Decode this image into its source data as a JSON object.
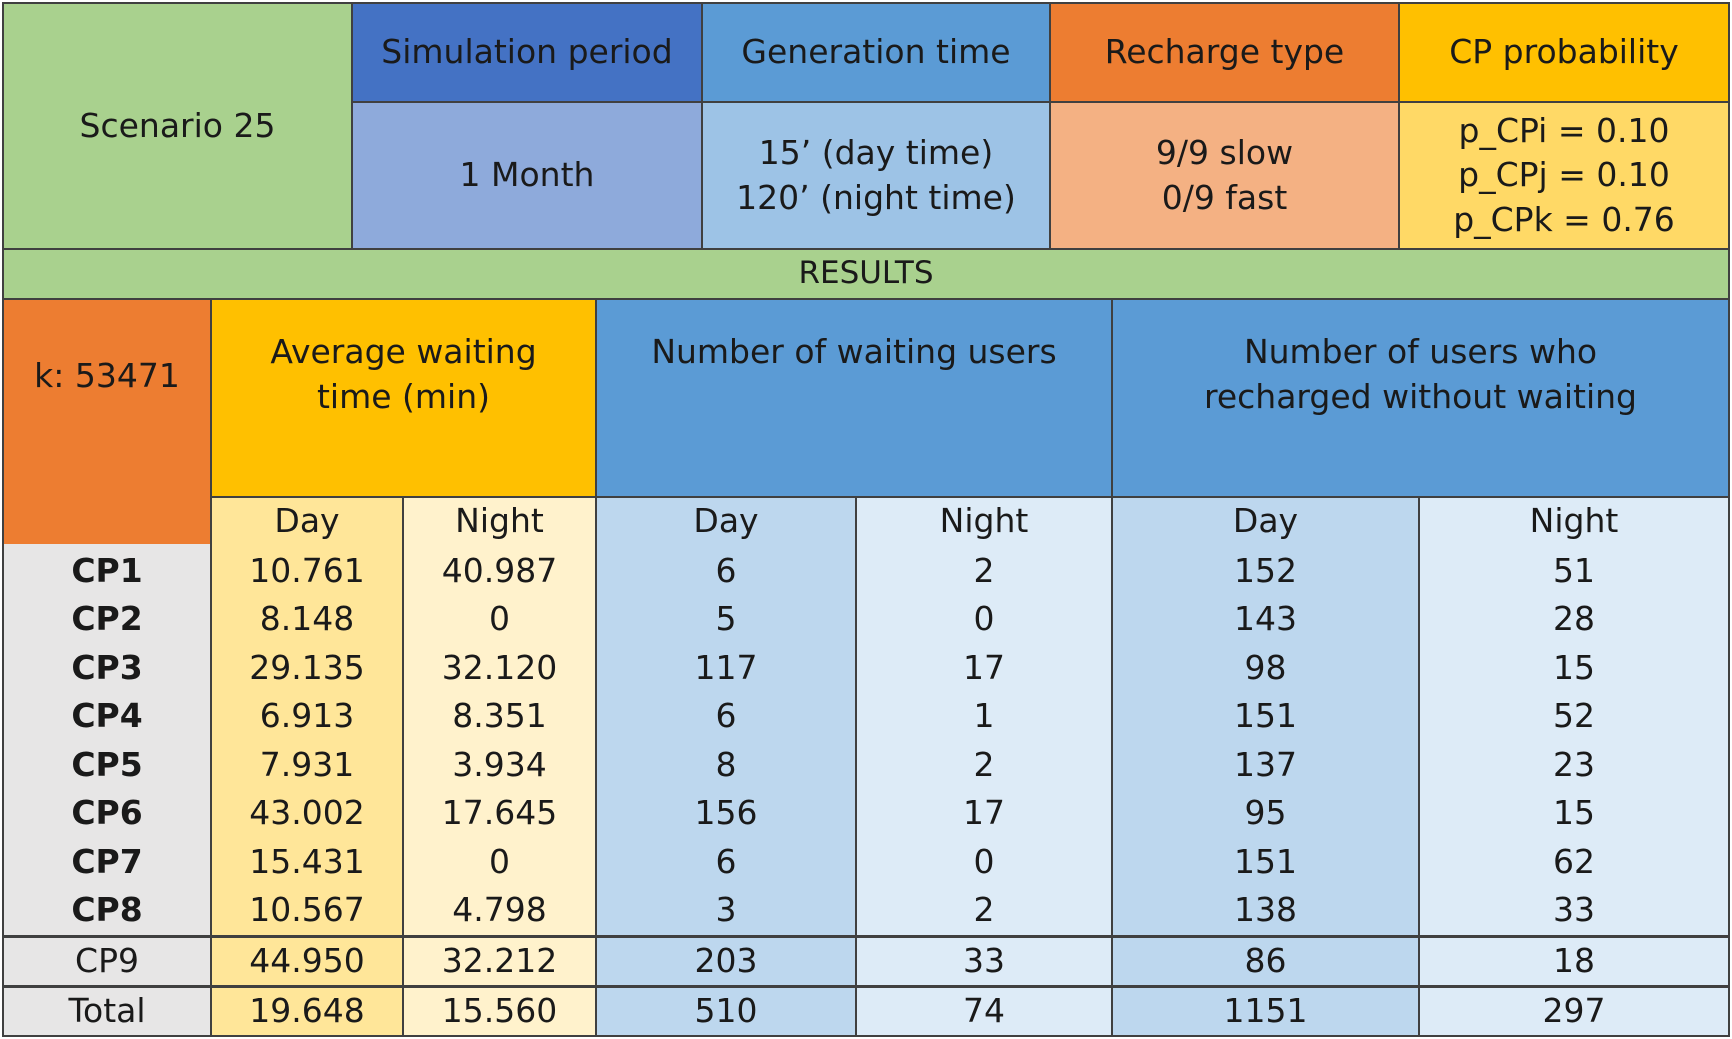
{
  "scenario": {
    "label": "Scenario 25",
    "simulation_period": {
      "header": "Simulation period",
      "value": "1 Month"
    },
    "generation_time": {
      "header": "Generation time",
      "lines": [
        "15’ (day time)",
        "120’ (night time)"
      ]
    },
    "recharge_type": {
      "header": "Recharge type",
      "lines": [
        "9/9 slow",
        "0/9 fast"
      ]
    },
    "cp_probability": {
      "header": "CP probability",
      "lines": [
        "p_CPi = 0.10",
        "p_CPj = 0.10",
        "p_CPk = 0.76"
      ]
    }
  },
  "results_label": "RESULTS",
  "k_label": "k: 53471",
  "groups": {
    "avg_wait": "Average waiting time (min)",
    "waiting_users": "Number of waiting users",
    "no_wait_users": "Number of users who recharged without waiting"
  },
  "subheaders": {
    "day": "Day",
    "night": "Night"
  },
  "rows": [
    {
      "cp": "CP1",
      "avg_day": "10.761",
      "avg_night": "40.987",
      "wait_day": "6",
      "wait_night": "2",
      "nowait_day": "152",
      "nowait_night": "51"
    },
    {
      "cp": "CP2",
      "avg_day": "8.148",
      "avg_night": "0",
      "wait_day": "5",
      "wait_night": "0",
      "nowait_day": "143",
      "nowait_night": "28"
    },
    {
      "cp": "CP3",
      "avg_day": "29.135",
      "avg_night": "32.120",
      "wait_day": "117",
      "wait_night": "17",
      "nowait_day": "98",
      "nowait_night": "15"
    },
    {
      "cp": "CP4",
      "avg_day": "6.913",
      "avg_night": "8.351",
      "wait_day": "6",
      "wait_night": "1",
      "nowait_day": "151",
      "nowait_night": "52"
    },
    {
      "cp": "CP5",
      "avg_day": "7.931",
      "avg_night": "3.934",
      "wait_day": "8",
      "wait_night": "2",
      "nowait_day": "137",
      "nowait_night": "23"
    },
    {
      "cp": "CP6",
      "avg_day": "43.002",
      "avg_night": "17.645",
      "wait_day": "156",
      "wait_night": "17",
      "nowait_day": "95",
      "nowait_night": "15"
    },
    {
      "cp": "CP7",
      "avg_day": "15.431",
      "avg_night": "0",
      "wait_day": "6",
      "wait_night": "0",
      "nowait_day": "151",
      "nowait_night": "62"
    },
    {
      "cp": "CP8",
      "avg_day": "10.567",
      "avg_night": "4.798",
      "wait_day": "3",
      "wait_night": "2",
      "nowait_day": "138",
      "nowait_night": "33"
    }
  ],
  "cp9": {
    "cp": "CP9",
    "avg_day": "44.950",
    "avg_night": "32.212",
    "wait_day": "203",
    "wait_night": "33",
    "nowait_day": "86",
    "nowait_night": "18"
  },
  "total": {
    "cp": "Total",
    "avg_day": "19.648",
    "avg_night": "15.560",
    "wait_day": "510",
    "wait_night": "74",
    "nowait_day": "1151",
    "nowait_night": "297"
  },
  "colors": {
    "green": "#a9d18e",
    "blue_dark": "#4472c4",
    "blue_dark_light": "#8eaadb",
    "blue_mid": "#5b9bd5",
    "blue_mid_light": "#9dc3e6",
    "orange": "#ed7d31",
    "orange_light": "#f4b183",
    "gold": "#ffc000",
    "gold_light": "#ffd966",
    "gold_pale": "#ffe699",
    "cream": "#fff2cc",
    "blue_pale": "#bdd7ee",
    "blue_paler": "#ddebf7",
    "grey": "#e7e6e6"
  }
}
